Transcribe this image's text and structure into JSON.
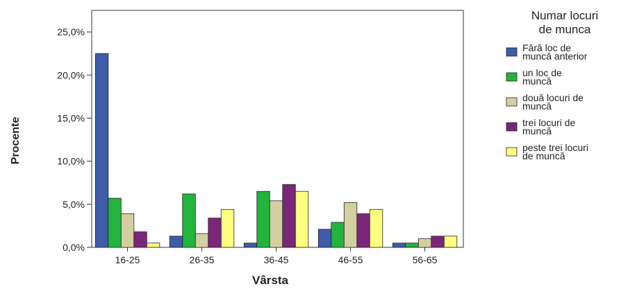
{
  "chart_data": {
    "type": "bar",
    "title": "",
    "xlabel": "Vârsta",
    "ylabel": "Procente",
    "ylim": [
      0,
      27.5
    ],
    "yticks": [
      "0,0%",
      "5,0%",
      "10,0%",
      "15,0%",
      "20,0%",
      "25,0%"
    ],
    "ytick_values": [
      0,
      5,
      10,
      15,
      20,
      25
    ],
    "grid": false,
    "legend_placement": "right",
    "legend_title": [
      "Numar locuri",
      "de munca"
    ],
    "categories": [
      "16-25",
      "26-35",
      "36-45",
      "46-55",
      "56-65"
    ],
    "series": [
      {
        "name": "Fără loc de muncă anterior",
        "name_lines": [
          "Fără loc de",
          "muncă anterior"
        ],
        "color": "#3E5CA8",
        "values": [
          22.5,
          1.3,
          0.5,
          2.1,
          0.5
        ]
      },
      {
        "name": "un loc de muncă",
        "name_lines": [
          "un loc de",
          "muncă"
        ],
        "color": "#22B43C",
        "values": [
          5.7,
          6.2,
          6.5,
          2.9,
          0.5
        ]
      },
      {
        "name": "două locuri de muncă",
        "name_lines": [
          "două locuri de",
          "muncă"
        ],
        "color": "#D4CFA1",
        "values": [
          3.9,
          1.6,
          5.4,
          5.2,
          1.0
        ]
      },
      {
        "name": "trei locuri de muncă",
        "name_lines": [
          "trei locuri de",
          "muncă"
        ],
        "color": "#7B2779",
        "values": [
          1.8,
          3.4,
          7.3,
          3.9,
          1.3
        ]
      },
      {
        "name": "peste trei locuri de muncă",
        "name_lines": [
          "peste trei locuri",
          "de muncă"
        ],
        "color": "#FFFF80",
        "values": [
          0.5,
          4.4,
          6.5,
          4.4,
          1.3
        ]
      }
    ]
  }
}
